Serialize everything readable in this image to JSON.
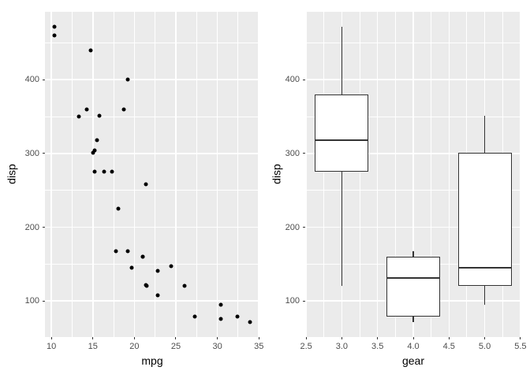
{
  "figure": {
    "background": "#FFFFFF",
    "panel_background": "#EBEBEB",
    "grid_color": "#FFFFFF",
    "tick_color": "#333333",
    "tick_label_color": "#4D4D4D",
    "axis_title_color": "#000000",
    "point_color": "#000000",
    "box_border_color": "#333333",
    "box_fill": "#FFFFFF"
  },
  "chart_data": [
    {
      "type": "scatter",
      "title": "",
      "xlabel": "mpg",
      "ylabel": "disp",
      "xlim": [
        9.225,
        35.075
      ],
      "ylim": [
        51.055,
        492.045
      ],
      "x_tick_values": [
        10,
        15,
        20,
        25,
        30,
        35
      ],
      "x_tick_labels": [
        "10",
        "15",
        "20",
        "25",
        "30",
        "35"
      ],
      "y_tick_values": [
        100,
        200,
        300,
        400
      ],
      "y_tick_labels": [
        "100",
        "200",
        "300",
        "400"
      ],
      "x_minor": [
        12.5,
        17.5,
        22.5,
        27.5,
        32.5
      ],
      "y_minor": [
        150,
        250,
        350,
        450
      ],
      "grid": true,
      "legend": "none",
      "points": [
        [
          21.0,
          160.0
        ],
        [
          21.0,
          160.0
        ],
        [
          22.8,
          108.0
        ],
        [
          21.4,
          258.0
        ],
        [
          18.7,
          360.0
        ],
        [
          18.1,
          225.0
        ],
        [
          14.3,
          360.0
        ],
        [
          24.4,
          146.7
        ],
        [
          22.8,
          140.8
        ],
        [
          19.2,
          167.6
        ],
        [
          17.8,
          167.6
        ],
        [
          16.4,
          275.8
        ],
        [
          17.3,
          275.8
        ],
        [
          15.2,
          275.8
        ],
        [
          10.4,
          472.0
        ],
        [
          10.4,
          460.0
        ],
        [
          14.7,
          440.0
        ],
        [
          32.4,
          78.7
        ],
        [
          30.4,
          75.7
        ],
        [
          33.9,
          71.1
        ],
        [
          21.5,
          120.1
        ],
        [
          15.5,
          318.0
        ],
        [
          15.2,
          304.0
        ],
        [
          13.3,
          350.0
        ],
        [
          19.2,
          400.0
        ],
        [
          27.3,
          79.0
        ],
        [
          26.0,
          120.3
        ],
        [
          30.4,
          95.1
        ],
        [
          15.8,
          351.0
        ],
        [
          19.7,
          145.0
        ],
        [
          15.0,
          301.0
        ],
        [
          21.4,
          121.0
        ]
      ]
    },
    {
      "type": "boxplot",
      "title": "",
      "xlabel": "gear",
      "ylabel": "disp",
      "xlim": [
        2.4875,
        5.5125
      ],
      "ylim": [
        51.055,
        492.045
      ],
      "x_tick_values": [
        2.5,
        3.0,
        3.5,
        4.0,
        4.5,
        5.0,
        5.5
      ],
      "x_tick_labels": [
        "2.5",
        "3.0",
        "3.5",
        "4.0",
        "4.5",
        "5.0",
        "5.5"
      ],
      "y_tick_values": [
        100,
        200,
        300,
        400
      ],
      "y_tick_labels": [
        "100",
        "200",
        "300",
        "400"
      ],
      "x_minor": [
        2.75,
        3.25,
        3.75,
        4.25,
        4.75,
        5.25
      ],
      "y_minor": [
        150,
        250,
        350,
        450
      ],
      "grid": true,
      "legend": "none",
      "boxes": [
        {
          "x": 3,
          "width": 0.75,
          "min": 120.1,
          "q1": 275.8,
          "median": 318.0,
          "q3": 380.0,
          "max": 472.0
        },
        {
          "x": 4,
          "width": 0.75,
          "min": 71.1,
          "q1": 78.9,
          "median": 130.9,
          "q3": 160.0,
          "max": 167.6
        },
        {
          "x": 5,
          "width": 0.75,
          "min": 95.1,
          "q1": 120.3,
          "median": 145.0,
          "q3": 301.0,
          "max": 351.0
        }
      ]
    }
  ]
}
